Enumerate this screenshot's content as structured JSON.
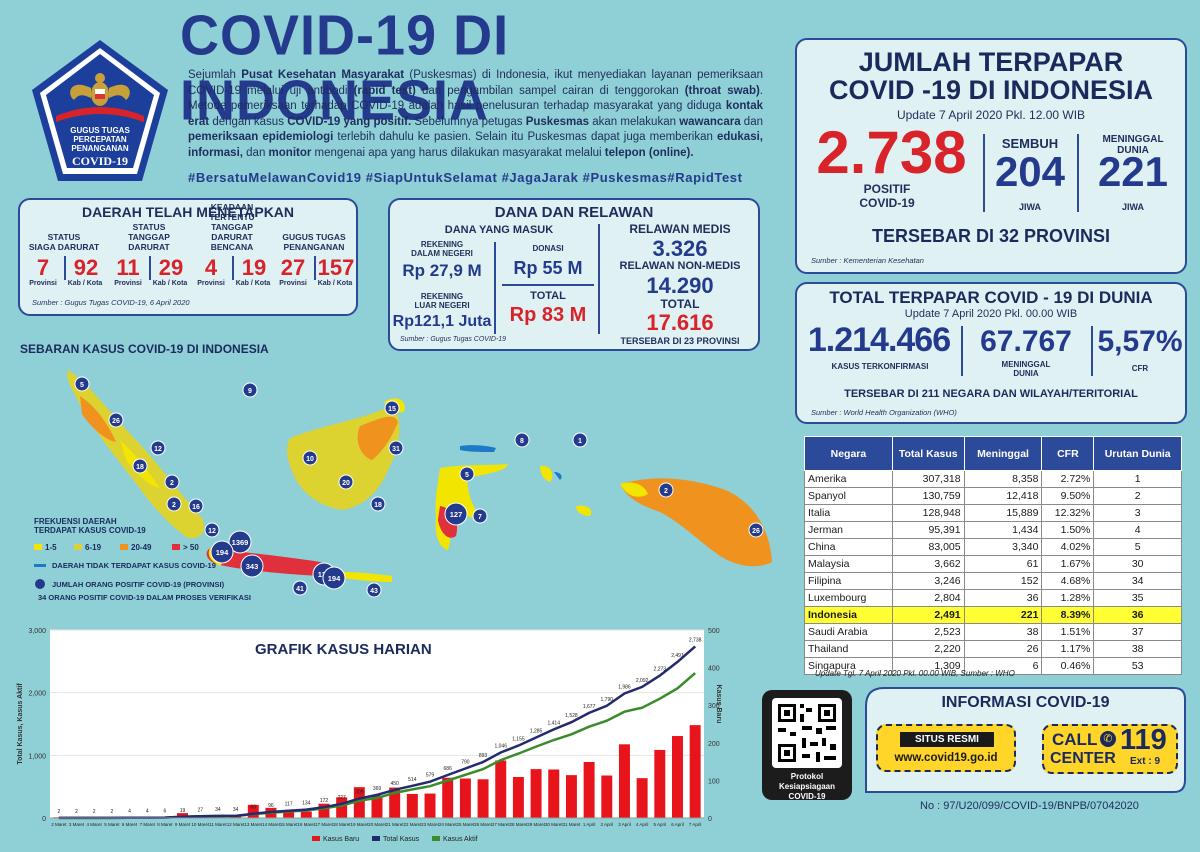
{
  "header": {
    "title": "COVID-19 DI INDONESIA",
    "intro_parts": [
      {
        "t": "Sejumlah ",
        "b": false
      },
      {
        "t": "Pusat Kesehatan Masyarakat",
        "b": true
      },
      {
        "t": " (Puskesmas) di Indonesia, ikut menyediakan layanan pemeriksaan COVID-19 melalui uji antibodi ",
        "b": false
      },
      {
        "t": "(rapid test)",
        "b": true
      },
      {
        "t": " dan pengambilan sampel cairan di tenggorokan ",
        "b": false
      },
      {
        "t": "(throat swab)",
        "b": true
      },
      {
        "t": ". Metode pemeriksaan terhadap COVID-19 adalah hasil penelusuran terhadap masyarakat yang diduga ",
        "b": false
      },
      {
        "t": "kontak erat",
        "b": true
      },
      {
        "t": " dengan kasus ",
        "b": false
      },
      {
        "t": "COVID-19 yang positif.",
        "b": true
      },
      {
        "t": " Sebelumnya petugas ",
        "b": false
      },
      {
        "t": "Puskesmas",
        "b": true
      },
      {
        "t": " akan melakukan ",
        "b": false
      },
      {
        "t": "wawancara",
        "b": true
      },
      {
        "t": " dan ",
        "b": false
      },
      {
        "t": "pemeriksaan epidemiologi",
        "b": true
      },
      {
        "t": " terlebih dahulu ke pasien. Selain itu Puskesmas dapat juga memberikan ",
        "b": false
      },
      {
        "t": "edukasi, informasi,",
        "b": true
      },
      {
        "t": " dan ",
        "b": false
      },
      {
        "t": "monitor",
        "b": true
      },
      {
        "t": " mengenai apa yang harus dilakukan masyarakat melalui ",
        "b": false
      },
      {
        "t": "telepon (online).",
        "b": true
      }
    ],
    "hashtags": "#BersatuMelawanCovid19 #SiapUntukSelamat #JagaJarak #Puskesmas#RapidTest"
  },
  "logo": {
    "lines": [
      "GUGUS TUGAS",
      "PERCEPATAN",
      "PENANGANAN",
      "COVID-19"
    ]
  },
  "daerah": {
    "title": "DAERAH TELAH MENETAPKAN",
    "columns": [
      {
        "label": "STATUS\nSIAGA DARURAT",
        "prov": "7",
        "kab": "92"
      },
      {
        "label": "STATUS\nTANGGAP DARURAT",
        "prov": "11",
        "kab": "29"
      },
      {
        "label": "KEADAAN TERTENTU\nTANGGAP DARURAT\nBENCANA",
        "prov": "4",
        "kab": "19"
      },
      {
        "label": "GUGUS TUGAS\nPENANGANAN",
        "prov": "27",
        "kab": "157"
      }
    ],
    "unit_prov": "Provinsi",
    "unit_kab": "Kab / Kota",
    "source": "Sumber : Gugus Tugas COVID-19, 6 April 2020"
  },
  "dana": {
    "title": "DANA DAN RELAWAN",
    "subtitle": "DANA YANG MASUK",
    "rek_dn_label": "REKENING\nDALAM NEGERI",
    "rek_dn_value": "Rp 27,9 M",
    "donasi_label": "DONASI",
    "donasi_value": "Rp 55 M",
    "rek_ln_label": "REKENING\nLUAR NEGERI",
    "rek_ln_value": "Rp121,1 Juta",
    "total_label": "TOTAL",
    "total_value": "Rp 83 M",
    "relawan_medis_label": "RELAWAN MEDIS",
    "relawan_medis_value": "3.326",
    "relawan_nonmedis_label": "RELAWAN NON-MEDIS",
    "relawan_nonmedis_value": "14.290",
    "relawan_total_label": "TOTAL",
    "relawan_total_value": "17.616",
    "tersebar": "TERSEBAR DI 23 PROVINSI",
    "source": "Sumber : Gugus Tugas COVID-19"
  },
  "jumlah": {
    "title": "JUMLAH TERPAPAR\nCOVID -19 DI INDONESIA",
    "update": "Update 7 April 2020 Pkl. 12.00 WIB",
    "positif_value": "2.738",
    "positif_label": "POSITIF\nCOVID-19",
    "sembuh_label": "SEMBUH",
    "sembuh_value": "204",
    "sembuh_unit": "JIWA",
    "meninggal_label": "MENINGGAL\nDUNIA",
    "meninggal_value": "221",
    "meninggal_unit": "JIWA",
    "tersebar": "TERSEBAR DI 32 PROVINSI",
    "source": "Sumber : Kementerian Kesehatan"
  },
  "dunia": {
    "title": "TOTAL TERPAPAR COVID - 19 DI DUNIA",
    "update": "Update 7 April 2020 Pkl. 00.00 WIB",
    "kasus_value": "1.214.466",
    "kasus_label": "KASUS TERKONFIRMASI",
    "meninggal_value": "67.767",
    "meninggal_label": "MENINGGAL\nDUNIA",
    "cfr_value": "5,57%",
    "cfr_label": "CFR",
    "tersebar": "TERSEBAR DI 211 NEGARA DAN WILAYAH/TERITORIAL",
    "source": "Sumber : World Health Organization (WHO)"
  },
  "world_table": {
    "headers": [
      "Negara",
      "Total Kasus",
      "Meninggal",
      "CFR",
      "Urutan Dunia"
    ],
    "rows": [
      [
        "Amerika",
        "307,318",
        "8,358",
        "2.72%",
        "1"
      ],
      [
        "Spanyol",
        "130,759",
        "12,418",
        "9.50%",
        "2"
      ],
      [
        "Italia",
        "128,948",
        "15,889",
        "12.32%",
        "3"
      ],
      [
        "Jerman",
        "95,391",
        "1,434",
        "1.50%",
        "4"
      ],
      [
        "China",
        "83,005",
        "3,340",
        "4.02%",
        "5"
      ],
      [
        "Malaysia",
        "3,662",
        "61",
        "1.67%",
        "30"
      ],
      [
        "Filipina",
        "3,246",
        "152",
        "4.68%",
        "34"
      ],
      [
        "Luxembourg",
        "2,804",
        "36",
        "1.28%",
        "35"
      ],
      [
        "Indonesia",
        "2,491",
        "221",
        "8.39%",
        "36"
      ],
      [
        "Saudi Arabia",
        "2,523",
        "38",
        "1.51%",
        "37"
      ],
      [
        "Thailand",
        "2,220",
        "26",
        "1.17%",
        "38"
      ],
      [
        "Singapura",
        "1,309",
        "6",
        "0.46%",
        "53"
      ]
    ],
    "highlight_row": 8,
    "note": "Update Tgl. 7 April 2020 Pkl. 00.00 WIB, Sumber : WHO"
  },
  "info": {
    "title": "INFORMASI COVID-19",
    "situs_label": "SITUS RESMI",
    "situs_url": "www.covid19.go.id",
    "call_label": "CALL",
    "center_label": "CENTER",
    "call_number": "119",
    "ext": "Ext : 9",
    "qr_caption": "Protokol Kesiapsiagaan\nCOVID-19"
  },
  "doc_number": "No : 97/U20/099/COVID-19/BNPB/07042020",
  "map": {
    "title": "SEBARAN KASUS COVID-19 DI INDONESIA",
    "legend_title": "FREKUENSI DAERAH\nTERDAPAT KASUS COVID-19",
    "legend_items": [
      {
        "label": "1-5",
        "color": "#f2e500"
      },
      {
        "label": "6-19",
        "color": "#d7d23e"
      },
      {
        "label": "20-49",
        "color": "#f0921e"
      },
      {
        "label": "> 50",
        "color": "#e0303c"
      }
    ],
    "legend_no_case": "DAERAH TIDAK TERDAPAT KASUS COVID-19",
    "legend_circle": "JUMLAH ORANG POSITIF COVID-19 (PROVINSI)",
    "legend_note": "34 ORANG POSITIF COVID-19 DALAM PROSES VERIFIKASI",
    "markers": [
      "5",
      "9",
      "26",
      "12",
      "18",
      "2",
      "2",
      "16",
      "12",
      "1369",
      "194",
      "343",
      "133",
      "41",
      "194",
      "43",
      "10",
      "20",
      "18",
      "31",
      "15",
      "8",
      "1",
      "5",
      "127",
      "7",
      "2",
      "26"
    ]
  },
  "chart_data": {
    "type": "bar+line",
    "title": "GRAFIK KASUS HARIAN",
    "ylabel_left": "Total Kasus, Kasus Aktif",
    "ylabel_right": "Kasus Baru",
    "ylim_left": [
      0,
      3000
    ],
    "ylim_right": [
      0,
      500
    ],
    "y_ticks_left": [
      "0",
      "1,000",
      "2,000",
      "3,000"
    ],
    "y_ticks_right": [
      "0",
      "100",
      "200",
      "300",
      "400",
      "500"
    ],
    "categories": [
      "2 Maret",
      "3 Maret",
      "4 Maret",
      "5 Maret",
      "6 Maret",
      "7 Maret",
      "8 Maret",
      "9 Maret",
      "10 Maret",
      "11 Maret",
      "12 Maret",
      "13 Maret",
      "14 Maret",
      "15 Maret",
      "16 Maret",
      "17 Maret",
      "18 Maret",
      "19 Maret",
      "20 Maret",
      "21 Maret",
      "22 Maret",
      "23 Maret",
      "24 Maret",
      "25 Maret",
      "26 Maret",
      "27 Maret",
      "28 Maret",
      "29 Maret",
      "30 Maret",
      "31 Maret",
      "1 April",
      "2 April",
      "3 April",
      "4 April",
      "5 April",
      "6 April",
      "7 April"
    ],
    "series": [
      {
        "name": "Kasus Baru",
        "color": "#e8141c",
        "axis": "right",
        "values": [
          2,
          0,
          0,
          0,
          0,
          2,
          0,
          13,
          8,
          7,
          7,
          35,
          27,
          21,
          17,
          38,
          55,
          82,
          60,
          81,
          64,
          65,
          107,
          105,
          103,
          153,
          109,
          130,
          129,
          114,
          149,
          113,
          196,
          106,
          181,
          218,
          247
        ]
      },
      {
        "name": "Total Kasus",
        "color": "#242a6e",
        "axis": "left",
        "values": [
          2,
          2,
          2,
          2,
          4,
          4,
          6,
          19,
          27,
          34,
          34,
          69,
          96,
          117,
          134,
          172,
          227,
          309,
          369,
          450,
          514,
          579,
          686,
          790,
          893,
          1046,
          1155,
          1285,
          1414,
          1528,
          1677,
          1790,
          1986,
          2092,
          2273,
          2491,
          2738
        ]
      },
      {
        "name": "Kasus Aktif",
        "color": "#3a8c2a",
        "axis": "left",
        "values": [
          2,
          2,
          2,
          2,
          4,
          4,
          6,
          19,
          27,
          31,
          31,
          62,
          85,
          104,
          120,
          156,
          200,
          275,
          320,
          400,
          456,
          507,
          598,
          689,
          781,
          924,
          1028,
          1140,
          1245,
          1336,
          1457,
          1552,
          1697,
          1760,
          1904,
          2070,
          2313
        ]
      }
    ],
    "total_labels": [
      "2",
      "2",
      "2",
      "2",
      "4",
      "4",
      "6",
      "19",
      "27",
      "34",
      "34",
      "69",
      "96",
      "117",
      "134",
      "172",
      "227",
      "309",
      "369",
      "450",
      "514",
      "579",
      "686",
      "790",
      "893",
      "1,046",
      "1,155",
      "1,285",
      "1,414",
      "1,528",
      "1,677",
      "1,790",
      "1,986",
      "2,092",
      "2,273",
      "2,491",
      "2,738"
    ],
    "legend": [
      "Kasus Baru",
      "Total Kasus",
      "Kasus Aktif"
    ]
  }
}
